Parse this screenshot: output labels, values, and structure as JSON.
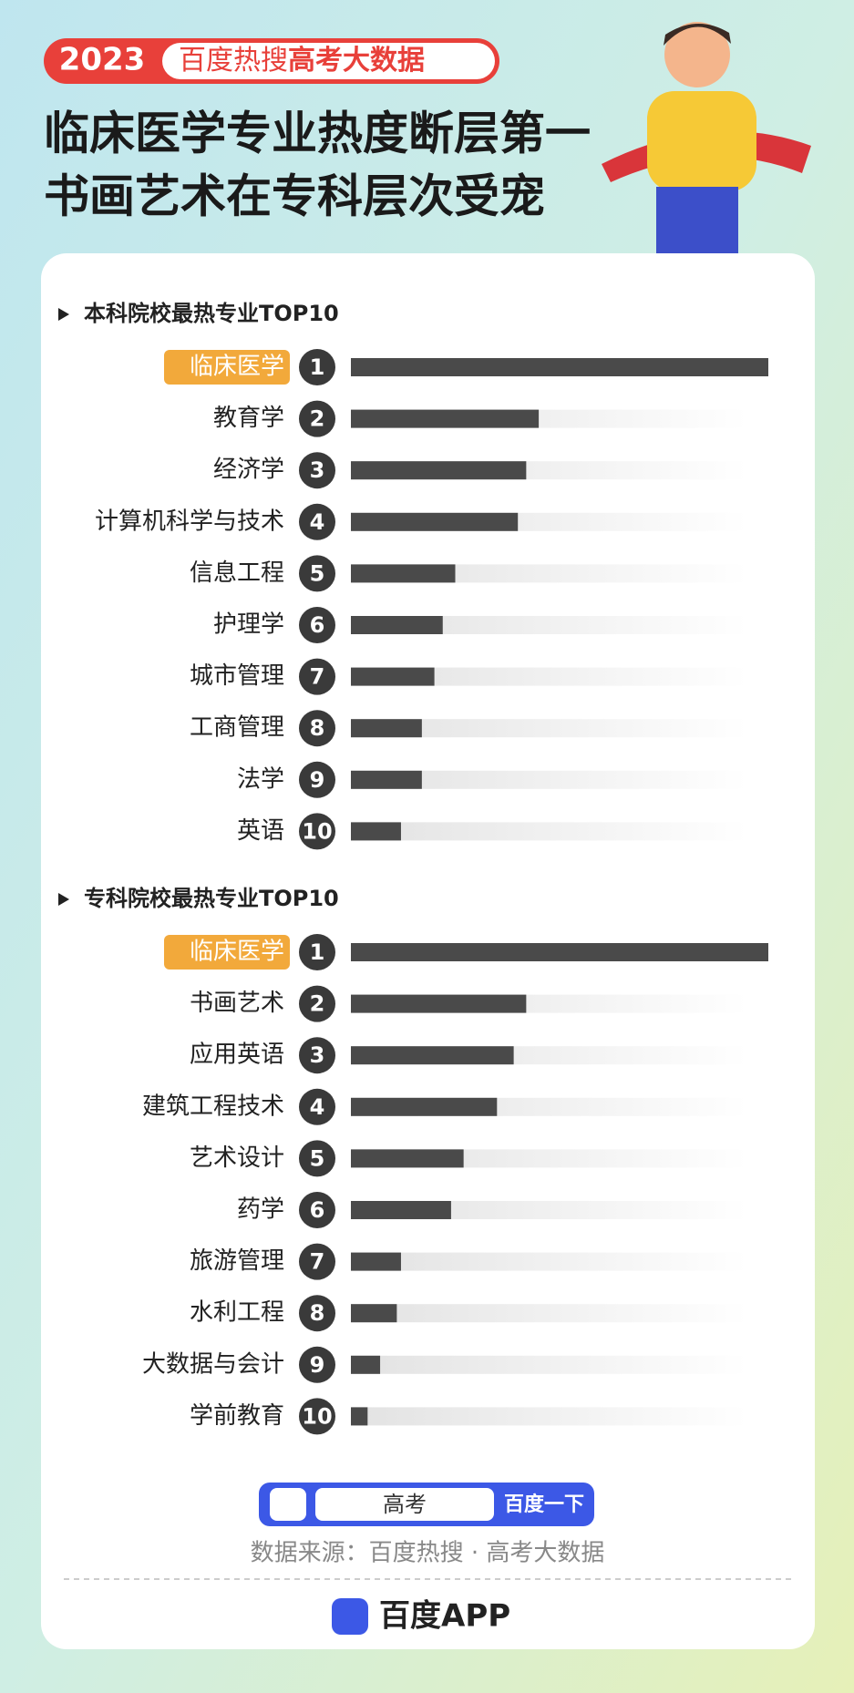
{
  "header": {
    "year": "2023",
    "tag": "百度热搜",
    "tag_bold": "高考大数据",
    "title_lines": [
      "临床医学专业热度断层第一",
      "书画艺术在专科层次受宠"
    ]
  },
  "chart_data": [
    {
      "type": "bar",
      "title": "本科院校最热专业TOP10",
      "categories": [
        "临床医学",
        "教育学",
        "经济学",
        "计算机科学与技术",
        "信息工程",
        "护理学",
        "城市管理",
        "工商管理",
        "法学",
        "英语"
      ],
      "ranks": [
        1,
        2,
        3,
        4,
        5,
        6,
        7,
        8,
        9,
        10
      ],
      "values": [
        100,
        45,
        42,
        40,
        25,
        22,
        20,
        17,
        17,
        12
      ],
      "xlim": [
        0,
        100
      ],
      "color": "#4a4a4a",
      "highlight_color": "#f2a93b"
    },
    {
      "type": "bar",
      "title": "专科院校最热专业TOP10",
      "categories": [
        "临床医学",
        "书画艺术",
        "应用英语",
        "建筑工程技术",
        "艺术设计",
        "药学",
        "旅游管理",
        "水利工程",
        "大数据与会计",
        "学前教育"
      ],
      "ranks": [
        1,
        2,
        3,
        4,
        5,
        6,
        7,
        8,
        9,
        10
      ],
      "values": [
        100,
        42,
        39,
        35,
        27,
        24,
        12,
        11,
        7,
        4
      ],
      "xlim": [
        0,
        100
      ],
      "color": "#4a4a4a",
      "highlight_color": "#f2a93b"
    }
  ],
  "footer": {
    "search_text": "高考",
    "search_button": "百度一下",
    "source": "数据来源：百度热搜 · 高考大数据",
    "app": "百度APP"
  }
}
